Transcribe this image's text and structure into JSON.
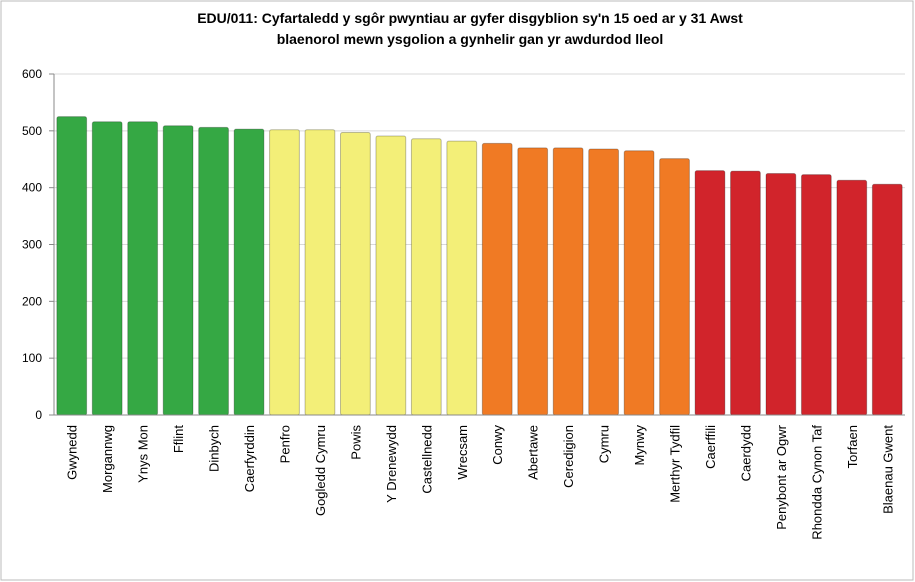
{
  "chart_data": {
    "type": "bar",
    "title": [
      "EDU/011: Cyfartaledd y sgôr pwyntiau ar gyfer disgyblion sy'n 15 oed ar y 31 Awst",
      "blaenorol mewn ysgolion a gynhelir gan yr awdurdod lleol"
    ],
    "categories": [
      "Gwynedd",
      "Morgannwg",
      "Ynys Mon",
      "Fflint",
      "Dinbych",
      "Caerfyrddin",
      "Penfro",
      "Gogledd Cymru",
      "Powis",
      "Y Drenewydd",
      "Castellnedd",
      "Wrecsam",
      "Conwy",
      "Abertawe",
      "Ceredigion",
      "Cymru",
      "Mynwy",
      "Merthyr Tydfil",
      "Caerffili",
      "Caerdydd",
      "Penybont ar Ogwr",
      "Rhondda Cynon Taf",
      "Torfaen",
      "Blaenau Gwent"
    ],
    "values": [
      525,
      516,
      516,
      509,
      506,
      503,
      502,
      502,
      497,
      491,
      486,
      482,
      478,
      470,
      470,
      468,
      465,
      451,
      430,
      429,
      425,
      423,
      413,
      406
    ],
    "colors": [
      "#35a844",
      "#35a844",
      "#35a844",
      "#35a844",
      "#35a844",
      "#35a844",
      "#f3ef78",
      "#f3ef78",
      "#f3ef78",
      "#f3ef78",
      "#f3ef78",
      "#f3ef78",
      "#f07a24",
      "#f07a24",
      "#f07a24",
      "#f07a24",
      "#f07a24",
      "#f07a24",
      "#d1242b",
      "#d1242b",
      "#d1242b",
      "#d1242b",
      "#d1242b",
      "#d1242b"
    ],
    "ylim": [
      0,
      600
    ],
    "yticks": [
      0,
      100,
      200,
      300,
      400,
      500,
      600
    ],
    "grid": true
  }
}
